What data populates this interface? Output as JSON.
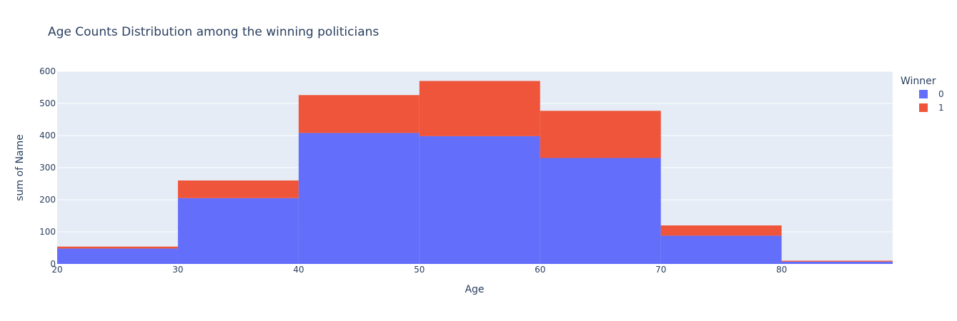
{
  "chart_data": {
    "type": "bar",
    "title": "Age Counts Distribution among the winning politicians",
    "xlabel": "Age",
    "ylabel": "sum of Name",
    "x_ticks": [
      20,
      30,
      40,
      50,
      60,
      70,
      80
    ],
    "y_ticks": [
      0,
      100,
      200,
      300,
      400,
      500,
      600
    ],
    "xlim": [
      20,
      89.2
    ],
    "ylim": [
      0,
      600
    ],
    "bins": [
      {
        "start": 20,
        "end": 30
      },
      {
        "start": 30,
        "end": 40
      },
      {
        "start": 40,
        "end": 50
      },
      {
        "start": 50,
        "end": 60
      },
      {
        "start": 60,
        "end": 70
      },
      {
        "start": 70,
        "end": 80
      },
      {
        "start": 80,
        "end": 89.2
      }
    ],
    "barmode": "stack",
    "legend": {
      "title": "Winner",
      "position": "top-right"
    },
    "series": [
      {
        "name": "0",
        "color": "#636efa",
        "values": [
          48,
          205,
          408,
          398,
          330,
          88,
          7
        ]
      },
      {
        "name": "1",
        "color": "#ef553b",
        "values": [
          6,
          55,
          118,
          172,
          147,
          32,
          3
        ]
      }
    ],
    "plot_background": "#e5ecf6",
    "grid": true
  }
}
